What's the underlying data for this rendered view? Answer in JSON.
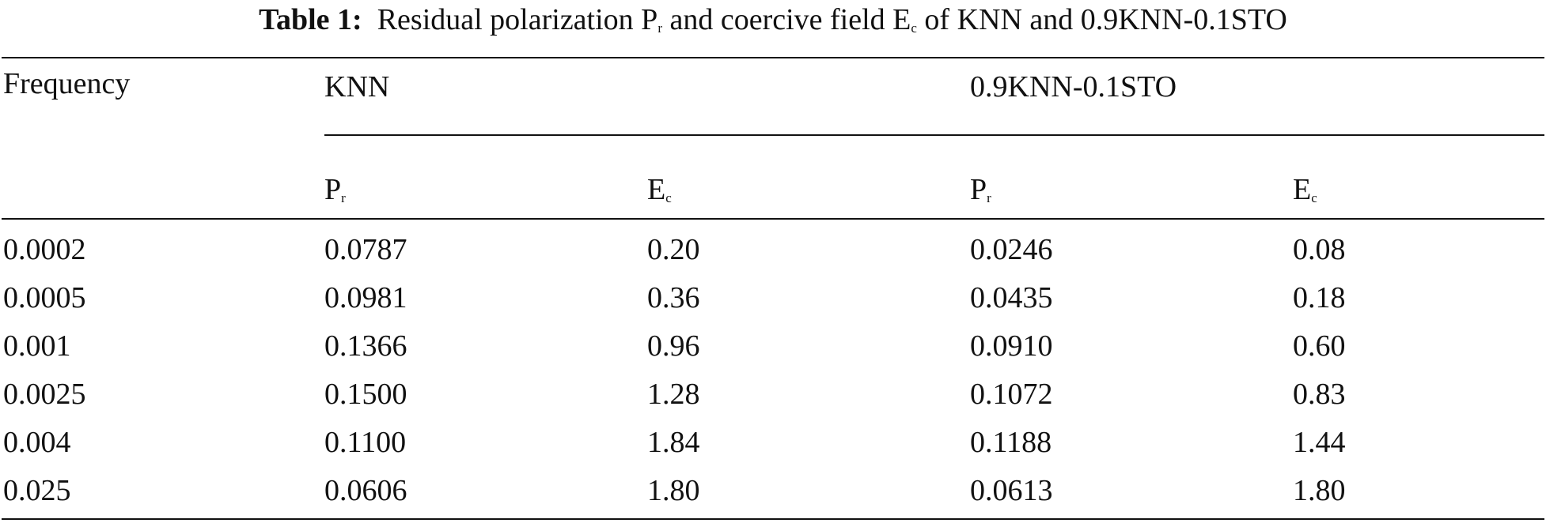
{
  "caption": {
    "label": "Table 1:",
    "text_pre": "Residual polarization P",
    "sub_r": "r",
    "text_mid": " and coercive field E",
    "sub_c": "c",
    "text_post": " of KNN and 0.9KNN-0.1STO"
  },
  "header": {
    "frequency": "Frequency",
    "group1": "KNN",
    "group2": "0.9KNN-0.1STO",
    "pr_main": "P",
    "pr_sub": "r",
    "ec_main": "E",
    "ec_sub": "c"
  },
  "rows": [
    [
      "0.0002",
      "0.0787",
      "0.20",
      "0.0246",
      "0.08"
    ],
    [
      "0.0005",
      "0.0981",
      "0.36",
      "0.0435",
      "0.18"
    ],
    [
      "0.001",
      "0.1366",
      "0.96",
      "0.0910",
      "0.60"
    ],
    [
      "0.0025",
      "0.1500",
      "1.28",
      "0.1072",
      "0.83"
    ],
    [
      "0.004",
      "0.1100",
      "1.84",
      "0.1188",
      "1.44"
    ],
    [
      "0.025",
      "0.0606",
      "1.80",
      "0.0613",
      "1.80"
    ]
  ]
}
